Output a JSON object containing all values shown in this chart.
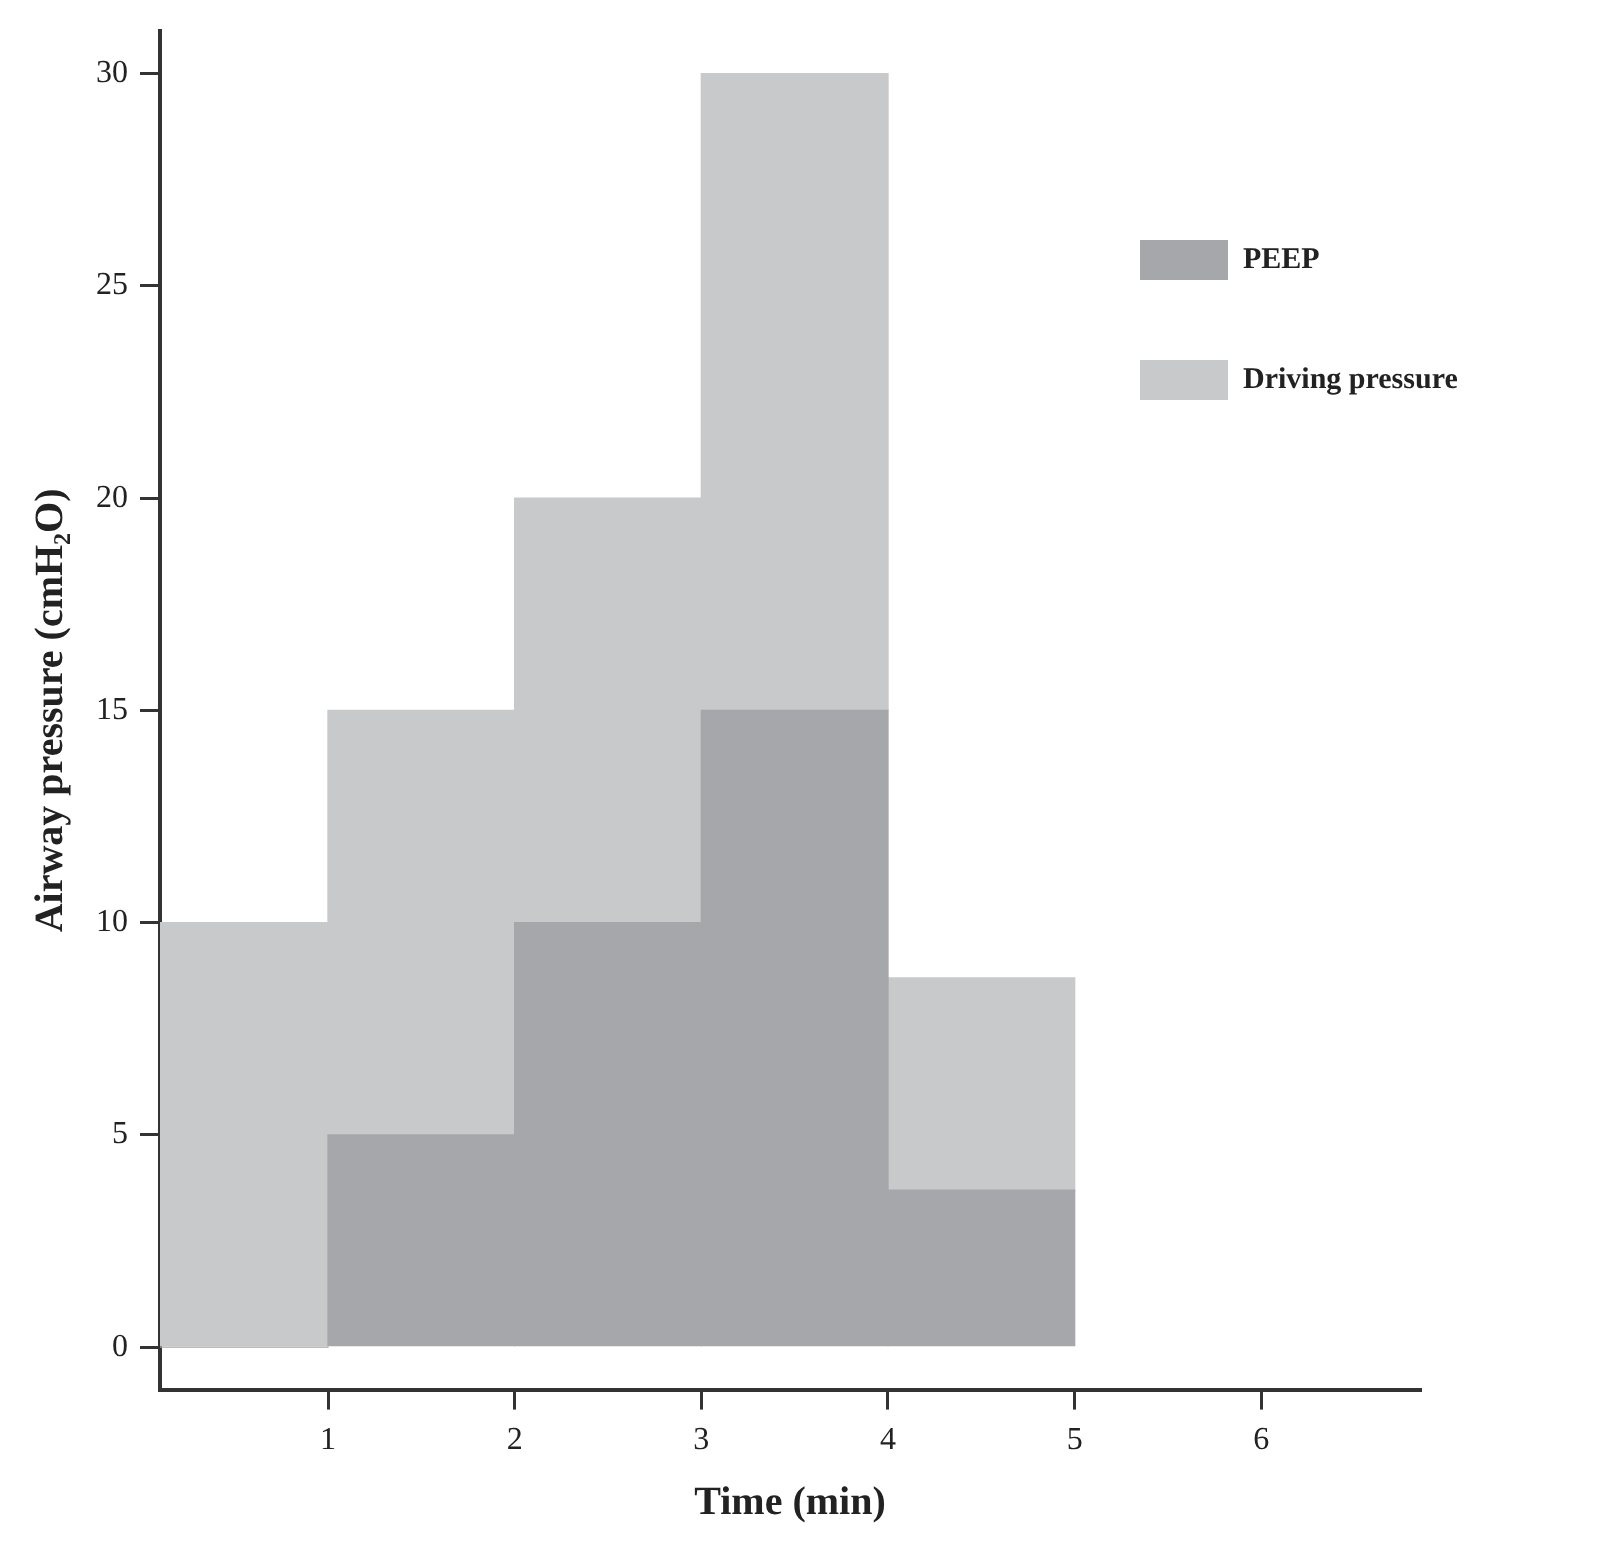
{
  "chart_data": {
    "type": "bar",
    "stacked": true,
    "xlabel": "Time (min)",
    "ylabel": "Airway pressure (cmH₂O)",
    "x": [
      0.5,
      1.5,
      2.5,
      3.5,
      4.5
    ],
    "series": [
      {
        "name": "PEEP",
        "color": "#a6a7aa",
        "values": [
          0,
          5,
          10,
          15,
          3.7
        ]
      },
      {
        "name": "Driving pressure",
        "color": "#c8c9cb",
        "values": [
          10,
          10,
          10,
          15,
          5
        ]
      }
    ],
    "xlim": [
      0.1,
      6.85
    ],
    "xticks": [
      1,
      2,
      3,
      4,
      5,
      6
    ],
    "ylim": [
      -1,
      31
    ],
    "yticks": [
      0,
      5,
      10,
      15,
      20,
      25,
      30
    ],
    "grid": false,
    "legend": "top right"
  }
}
